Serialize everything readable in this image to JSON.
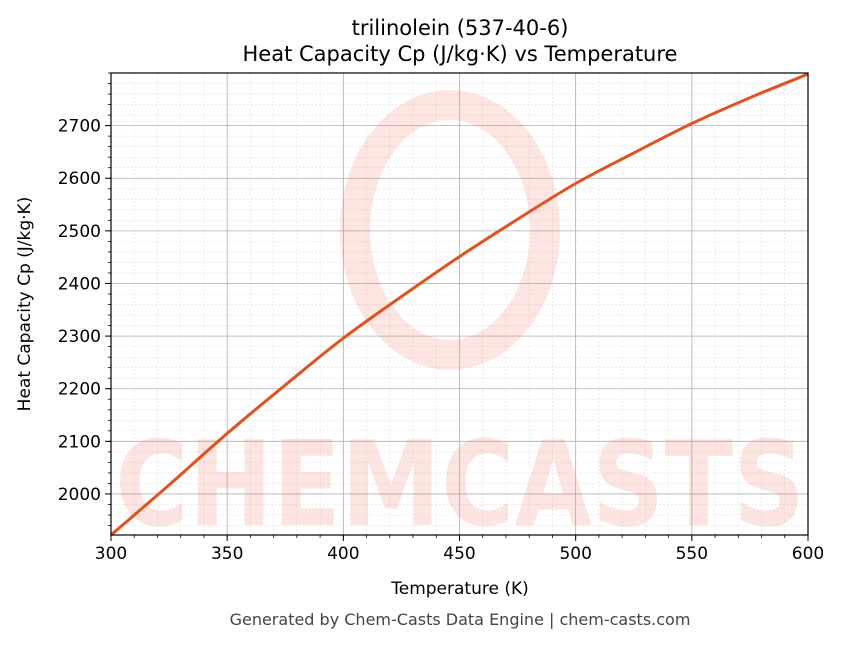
{
  "chart_data": {
    "type": "line",
    "title": "trilinolein (537-40-6)",
    "subtitle": "Heat Capacity Cp (J/kg·K) vs Temperature",
    "xlabel": "Temperature (K)",
    "ylabel": "Heat Capacity Cp (J/kg·K)",
    "xlim": [
      300,
      600
    ],
    "ylim": [
      1922,
      2800
    ],
    "xticks": [
      300,
      350,
      400,
      450,
      500,
      550,
      600
    ],
    "yticks": [
      2000,
      2100,
      2200,
      2300,
      2400,
      2500,
      2600,
      2700
    ],
    "grid": true,
    "minor_grid": true,
    "line_color": "#e0531f",
    "series": [
      {
        "x": [
          300,
          325,
          350,
          375,
          400,
          425,
          450,
          475,
          500,
          525,
          550,
          575,
          600
        ],
        "y": [
          1922,
          2017,
          2115,
          2207,
          2296,
          2375,
          2451,
          2522,
          2590,
          2648,
          2704,
          2753,
          2798
        ]
      }
    ],
    "watermark": "CHEMCASTS",
    "footer": "Generated by Chem-Casts Data Engine | chem-casts.com"
  }
}
